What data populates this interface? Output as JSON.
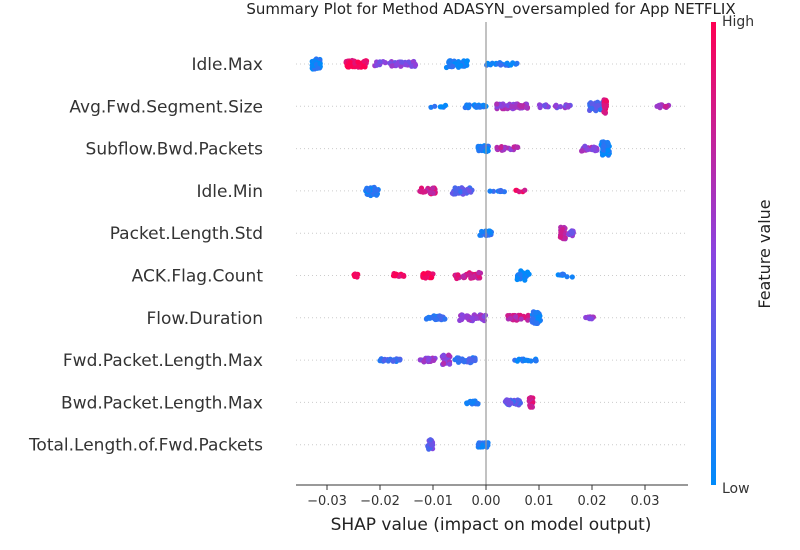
{
  "chart_data": {
    "type": "scatter",
    "title": "Summary Plot for Method ADASYN_oversampled for App NETFLIX",
    "xlabel": "SHAP value (impact on model output)",
    "ylabel": "",
    "xlim": [
      -0.036,
      0.038
    ],
    "xticks": [
      -0.03,
      -0.02,
      -0.01,
      0.0,
      0.01,
      0.02,
      0.03
    ],
    "xtick_labels": [
      "−0.03",
      "−0.02",
      "−0.01",
      "0.00",
      "0.01",
      "0.02",
      "0.03"
    ],
    "grid": false,
    "colorbar": {
      "title": "Feature value",
      "high_label": "High",
      "low_label": "Low",
      "high_color": "#ff0052",
      "low_color": "#008bfb"
    },
    "features": [
      {
        "name": "Idle.Max",
        "clusters": [
          {
            "x": -0.032,
            "spread": 0.0008,
            "n": 60,
            "width": 10,
            "v": 0.05
          },
          {
            "x": -0.0245,
            "spread": 0.002,
            "n": 45,
            "width": 7,
            "v": 0.95
          },
          {
            "x": -0.017,
            "spread": 0.004,
            "n": 40,
            "width": 5,
            "v": 0.5
          },
          {
            "x": -0.0055,
            "spread": 0.002,
            "n": 45,
            "width": 7,
            "v": 0.1
          },
          {
            "x": 0.003,
            "spread": 0.003,
            "n": 20,
            "width": 3,
            "v": 0.1
          }
        ]
      },
      {
        "name": "Avg.Fwd.Segment.Size",
        "clusters": [
          {
            "x": -0.009,
            "spread": 0.0015,
            "n": 6,
            "width": 2,
            "v": 0.1
          },
          {
            "x": -0.002,
            "spread": 0.002,
            "n": 25,
            "width": 3,
            "v": 0.1
          },
          {
            "x": 0.005,
            "spread": 0.003,
            "n": 60,
            "width": 5,
            "v": 0.6
          },
          {
            "x": 0.013,
            "spread": 0.003,
            "n": 20,
            "width": 3,
            "v": 0.5
          },
          {
            "x": 0.021,
            "spread": 0.0015,
            "n": 40,
            "width": 9,
            "v": 0.25
          },
          {
            "x": 0.0225,
            "spread": 0.0003,
            "n": 25,
            "width": 14,
            "v": 0.85
          },
          {
            "x": 0.033,
            "spread": 0.0015,
            "n": 12,
            "width": 3,
            "v": 0.65
          }
        ]
      },
      {
        "name": "Subflow.Bwd.Packets",
        "clusters": [
          {
            "x": -0.0005,
            "spread": 0.001,
            "n": 35,
            "width": 6,
            "v": 0.1
          },
          {
            "x": 0.004,
            "spread": 0.002,
            "n": 20,
            "width": 4,
            "v": 0.65
          },
          {
            "x": 0.0195,
            "spread": 0.0015,
            "n": 20,
            "width": 5,
            "v": 0.55
          },
          {
            "x": 0.0225,
            "spread": 0.0008,
            "n": 45,
            "width": 14,
            "v": 0.05
          }
        ]
      },
      {
        "name": "Idle.Min",
        "clusters": [
          {
            "x": -0.0215,
            "spread": 0.0012,
            "n": 35,
            "width": 10,
            "v": 0.1
          },
          {
            "x": -0.011,
            "spread": 0.0015,
            "n": 30,
            "width": 6,
            "v": 0.8
          },
          {
            "x": -0.0045,
            "spread": 0.002,
            "n": 35,
            "width": 7,
            "v": 0.3
          },
          {
            "x": 0.002,
            "spread": 0.0015,
            "n": 8,
            "width": 2,
            "v": 0.15
          },
          {
            "x": 0.0065,
            "spread": 0.001,
            "n": 5,
            "width": 2,
            "v": 0.9
          }
        ]
      },
      {
        "name": "Packet.Length.Std",
        "clusters": [
          {
            "x": 0.0,
            "spread": 0.0012,
            "n": 30,
            "width": 5,
            "v": 0.15
          },
          {
            "x": 0.0145,
            "spread": 0.0005,
            "n": 35,
            "width": 12,
            "v": 0.7
          },
          {
            "x": 0.016,
            "spread": 0.0005,
            "n": 15,
            "width": 6,
            "v": 0.45
          }
        ]
      },
      {
        "name": "ACK.Flag.Count",
        "clusters": [
          {
            "x": -0.0245,
            "spread": 0.0004,
            "n": 15,
            "width": 3,
            "v": 0.98
          },
          {
            "x": -0.0165,
            "spread": 0.001,
            "n": 20,
            "width": 4,
            "v": 0.95
          },
          {
            "x": -0.011,
            "spread": 0.001,
            "n": 30,
            "width": 5,
            "v": 0.95
          },
          {
            "x": -0.0035,
            "spread": 0.0025,
            "n": 40,
            "width": 6,
            "v": 0.8
          },
          {
            "x": 0.007,
            "spread": 0.0012,
            "n": 30,
            "width": 10,
            "v": 0.05
          },
          {
            "x": 0.015,
            "spread": 0.0015,
            "n": 8,
            "width": 3,
            "v": 0.1
          }
        ]
      },
      {
        "name": "Flow.Duration",
        "clusters": [
          {
            "x": -0.0095,
            "spread": 0.002,
            "n": 30,
            "width": 4,
            "v": 0.15
          },
          {
            "x": -0.0025,
            "spread": 0.0025,
            "n": 40,
            "width": 6,
            "v": 0.55
          },
          {
            "x": 0.006,
            "spread": 0.002,
            "n": 40,
            "width": 5,
            "v": 0.75
          },
          {
            "x": 0.0095,
            "spread": 0.0008,
            "n": 40,
            "width": 12,
            "v": 0.1
          },
          {
            "x": 0.0195,
            "spread": 0.0008,
            "n": 10,
            "width": 3,
            "v": 0.55
          }
        ]
      },
      {
        "name": "Fwd.Packet.Length.Max",
        "clusters": [
          {
            "x": -0.018,
            "spread": 0.002,
            "n": 25,
            "width": 3,
            "v": 0.2
          },
          {
            "x": -0.011,
            "spread": 0.0015,
            "n": 25,
            "width": 4,
            "v": 0.55
          },
          {
            "x": -0.0075,
            "spread": 0.0008,
            "n": 25,
            "width": 10,
            "v": 0.55
          },
          {
            "x": -0.004,
            "spread": 0.002,
            "n": 30,
            "width": 5,
            "v": 0.2
          },
          {
            "x": 0.0075,
            "spread": 0.0025,
            "n": 15,
            "width": 2,
            "v": 0.1
          }
        ]
      },
      {
        "name": "Bwd.Packet.Length.Max",
        "clusters": [
          {
            "x": -0.0025,
            "spread": 0.0012,
            "n": 20,
            "width": 3,
            "v": 0.1
          },
          {
            "x": 0.005,
            "spread": 0.0015,
            "n": 30,
            "width": 5,
            "v": 0.3
          },
          {
            "x": 0.0085,
            "spread": 0.0004,
            "n": 25,
            "width": 10,
            "v": 0.8
          }
        ]
      },
      {
        "name": "Total.Length.of.Fwd.Packets",
        "clusters": [
          {
            "x": -0.0105,
            "spread": 0.0005,
            "n": 25,
            "width": 10,
            "v": 0.35
          },
          {
            "x": -0.0005,
            "spread": 0.001,
            "n": 30,
            "width": 5,
            "v": 0.1
          }
        ]
      }
    ]
  }
}
